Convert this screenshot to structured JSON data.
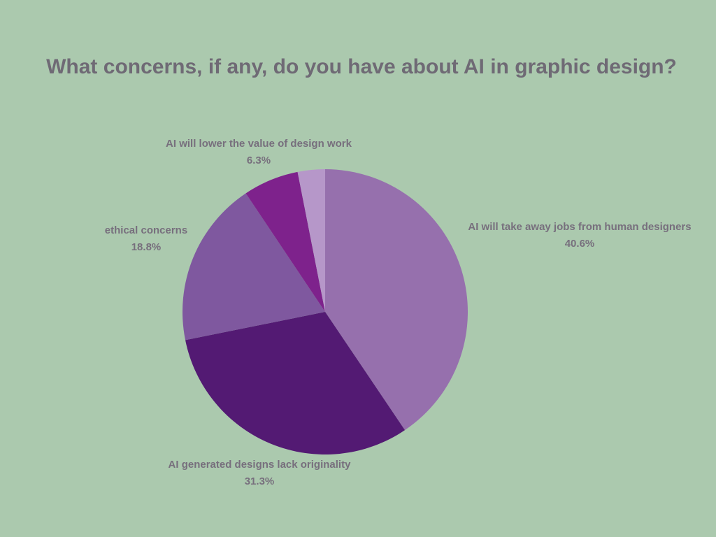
{
  "chart_data": {
    "type": "pie",
    "title": "What concerns, if any, do you have about AI in graphic design?",
    "categories": [
      "AI will take away jobs from human designers",
      "AI generated designs lack originality",
      "ethical concerns",
      "AI will lower the value of design work",
      null
    ],
    "values": [
      40.6,
      31.3,
      18.8,
      6.3,
      3.1
    ],
    "value_labels": [
      "40.6%",
      "31.3%",
      "18.8%",
      "6.3%",
      null
    ],
    "colors": [
      "#9670ad",
      "#531a73",
      "#7f589f",
      "#7e228c",
      "#b697c9"
    ]
  }
}
